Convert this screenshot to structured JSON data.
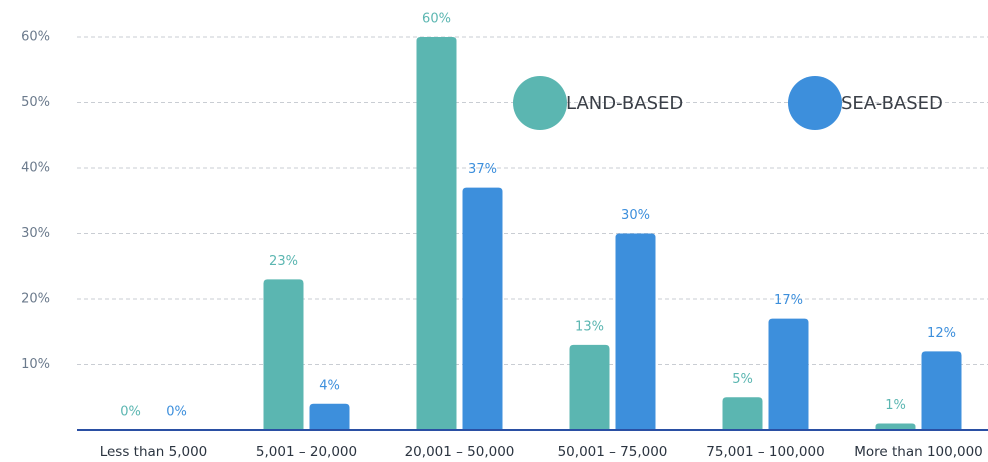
{
  "chart_data": {
    "type": "bar",
    "categories": [
      "Less than 5,000",
      "5,001 – 20,000",
      "20,001 – 50,000",
      "50,001 – 75,000",
      "75,001 – 100,000",
      "More than 100,000"
    ],
    "series": [
      {
        "name": "LAND-BASED",
        "color": "#5bb6b1",
        "values": [
          0,
          23,
          60,
          13,
          5,
          1
        ],
        "value_labels": [
          "0%",
          "23%",
          "60%",
          "13%",
          "5%",
          "1%"
        ]
      },
      {
        "name": "SEA-BASED",
        "color": "#3d8fdc",
        "values": [
          0,
          4,
          37,
          30,
          17,
          12
        ],
        "value_labels": [
          "0%",
          "4%",
          "37%",
          "30%",
          "17%",
          "12%"
        ]
      }
    ],
    "ylim": [
      0,
      60
    ],
    "yticks": [
      {
        "value": 10,
        "label": "10%"
      },
      {
        "value": 20,
        "label": "20%"
      },
      {
        "value": 30,
        "label": "30%"
      },
      {
        "value": 40,
        "label": "40%"
      },
      {
        "value": 50,
        "label": "50%"
      },
      {
        "value": 60,
        "label": "60%"
      }
    ],
    "grid": true
  }
}
